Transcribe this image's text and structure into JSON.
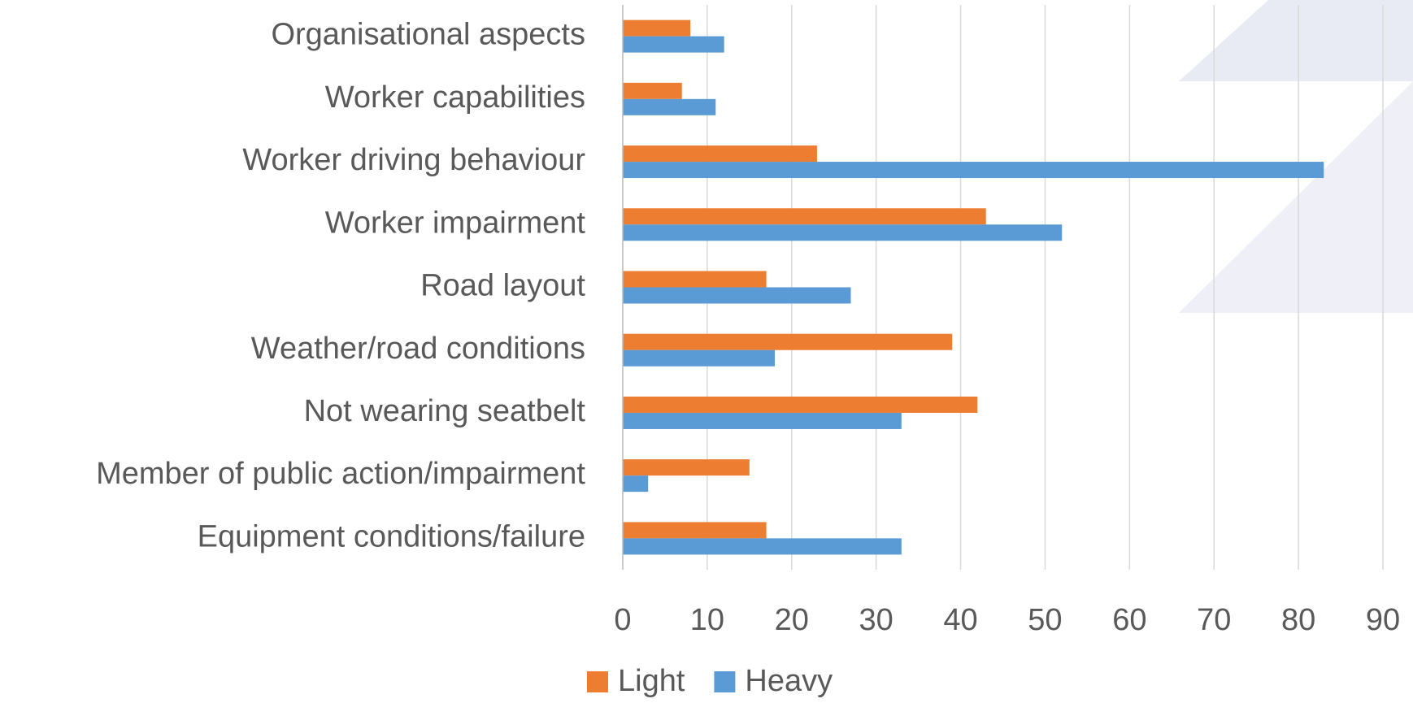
{
  "chart_data": {
    "type": "bar",
    "orientation": "horizontal",
    "categories": [
      "Organisational aspects",
      "Worker capabilities",
      "Worker driving behaviour",
      "Worker impairment",
      "Road layout",
      "Weather/road conditions",
      "Not wearing seatbelt",
      "Member of public action/impairment",
      "Equipment conditions/failure"
    ],
    "series": [
      {
        "name": "Light",
        "color": "#ed7d31",
        "values": [
          8,
          7,
          23,
          43,
          17,
          39,
          42,
          15,
          17
        ]
      },
      {
        "name": "Heavy",
        "color": "#5b9bd5",
        "values": [
          12,
          11,
          83,
          52,
          27,
          18,
          33,
          3,
          33
        ]
      }
    ],
    "xlim": [
      0,
      90
    ],
    "xticks": [
      0,
      10,
      20,
      30,
      40,
      50,
      60,
      70,
      80,
      90
    ],
    "grid": true,
    "legend": "bottom"
  }
}
